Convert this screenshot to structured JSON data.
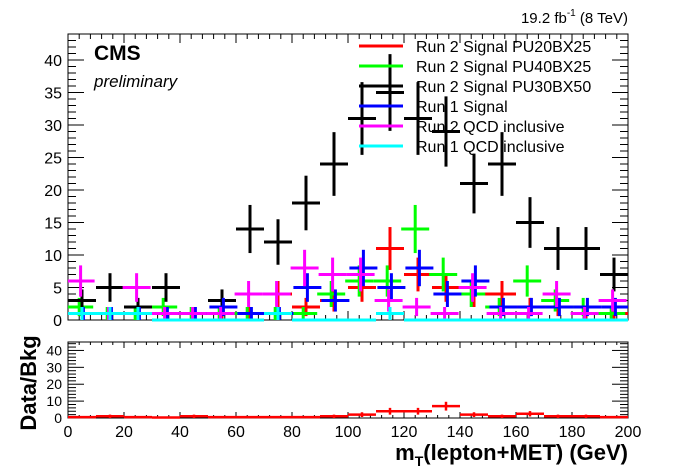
{
  "chart_data": {
    "type": "scatter",
    "experiment": "CMS",
    "status": "preliminary",
    "lumi_main": "19.2 fb",
    "lumi_exp": "-1",
    "lumi_energy": " (8 TeV)",
    "xlabel_main": "m",
    "xlabel_sub": "T",
    "xlabel_rest": "(lepton+MET) (GeV)",
    "ratio_ylabel": "Data/Bkg",
    "xlim": [
      0,
      200
    ],
    "ylim": [
      0,
      44
    ],
    "ratio_ylim": [
      0,
      45
    ],
    "bin_width": 10,
    "x_ticks": [
      0,
      20,
      40,
      60,
      80,
      100,
      120,
      140,
      160,
      180,
      200
    ],
    "y_ticks": [
      0,
      5,
      10,
      15,
      20,
      25,
      30,
      35,
      40
    ],
    "ratio_y_ticks": [
      0,
      10,
      20,
      30,
      40
    ],
    "series": [
      {
        "name": "Run 2 Signal PU20BX25",
        "color": "#ff0000",
        "x_offset": 0,
        "values": [
          1,
          1,
          1,
          1,
          1,
          1,
          1,
          4,
          2,
          3,
          5,
          11,
          7,
          5,
          4,
          4,
          2,
          2,
          1,
          1
        ],
        "errors": [
          1,
          1,
          1,
          1,
          1,
          1,
          1,
          2,
          1.4,
          1.7,
          2.2,
          3.3,
          2.6,
          2.2,
          2,
          2,
          1.4,
          1.4,
          1,
          1
        ]
      },
      {
        "name": "Run 2 Signal PU40BX25",
        "color": "#00ff00",
        "x_offset": -1,
        "values": [
          2,
          1,
          1,
          2,
          1,
          1,
          1,
          1,
          1,
          4,
          6,
          6,
          14,
          7,
          4,
          2,
          6,
          3,
          2,
          1
        ],
        "errors": [
          1.4,
          1,
          1,
          1.4,
          1,
          1,
          1,
          1,
          1,
          2,
          2.4,
          2.4,
          3.7,
          2.6,
          2,
          1.4,
          2.4,
          1.7,
          1.4,
          1
        ]
      },
      {
        "name": "Run 2 Signal PU30BX50",
        "color": "#000000",
        "x_offset": 0,
        "values": [
          3,
          5,
          2,
          5,
          1,
          3,
          14,
          12,
          18,
          24,
          31,
          35,
          31,
          29,
          21,
          24,
          15,
          11,
          11,
          7
        ],
        "errors": [
          1.7,
          2.2,
          1.4,
          2.2,
          1,
          1.7,
          3.7,
          3.5,
          4.2,
          4.9,
          5.6,
          5.9,
          5.6,
          5.4,
          4.6,
          4.9,
          3.9,
          3.3,
          3.3,
          2.6
        ]
      },
      {
        "name": "Run 1 Signal",
        "color": "#0000ff",
        "x_offset": 0.5,
        "values": [
          1,
          1,
          1,
          1,
          1,
          2,
          1,
          1,
          5,
          3,
          8,
          5,
          8,
          4,
          6,
          2,
          2,
          2,
          2,
          2
        ],
        "errors": [
          1,
          1,
          1,
          1,
          1,
          1.4,
          1,
          1,
          2.2,
          1.7,
          2.8,
          2.2,
          2.8,
          2,
          2.4,
          1.4,
          1.4,
          1.4,
          1.4,
          1.4
        ]
      },
      {
        "name": "Run 2 QCD inclusive",
        "color": "#ff00ff",
        "x_offset": -0.5,
        "values": [
          6,
          1,
          5,
          1,
          1,
          1,
          4,
          4,
          8,
          7,
          7,
          3,
          2,
          1,
          5,
          1,
          1,
          4,
          1,
          3
        ],
        "errors": [
          2.4,
          1,
          2.2,
          1,
          1,
          1,
          2,
          2,
          2.8,
          2.6,
          2.6,
          1.7,
          1.4,
          1,
          2.2,
          1,
          1,
          2,
          1,
          1.7
        ]
      },
      {
        "name": "Run 1 QCD inclusive",
        "color": "#00ffff",
        "x_offset": 0,
        "values": [
          1,
          1,
          1,
          0,
          0,
          0,
          0,
          1,
          0,
          0,
          0,
          1,
          0,
          0,
          0,
          0,
          0,
          0,
          0,
          0
        ],
        "errors": [
          1,
          1,
          1,
          0,
          0,
          0,
          0,
          1,
          0,
          0,
          0,
          1,
          0,
          0,
          0,
          0,
          0,
          0,
          0,
          0
        ]
      }
    ],
    "ratio": {
      "color": "#ff0000",
      "values": [
        0.5,
        1,
        0.5,
        0.3,
        1,
        0.5,
        0.5,
        0.5,
        0.5,
        1,
        2,
        4,
        4,
        7,
        2,
        1,
        2.5,
        1,
        1,
        0.5
      ],
      "errors": [
        0.5,
        1,
        0.5,
        0.3,
        1,
        0.5,
        0.5,
        0.5,
        0.5,
        1,
        1.4,
        2,
        2,
        2.6,
        1.4,
        1,
        1.6,
        1,
        1,
        0.5
      ]
    }
  }
}
